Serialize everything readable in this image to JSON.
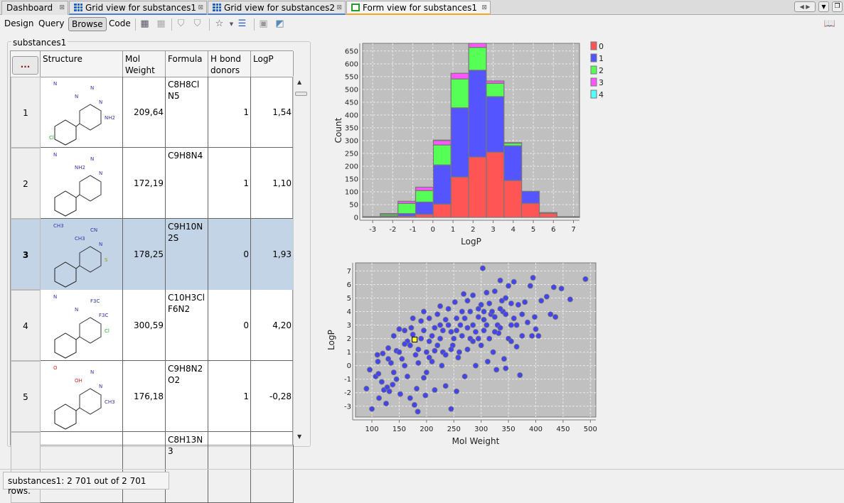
{
  "tabs": [
    {
      "label": "Dashboard",
      "icon": "none",
      "active": false
    },
    {
      "label": "Grid view for substances1",
      "icon": "grid-icon",
      "active": false
    },
    {
      "label": "Grid view for substances2",
      "icon": "grid-icon",
      "active": false
    },
    {
      "label": "Form view for substances1",
      "icon": "form-icon",
      "active": true
    }
  ],
  "toolbar": {
    "design": "Design",
    "query": "Query",
    "browse": "Browse",
    "code": "Code"
  },
  "panel": {
    "title": "substances1",
    "corner_button": "...",
    "columns": [
      "Structure",
      "Mol Weight",
      "Formula",
      "H bond donors",
      "LogP"
    ],
    "rows": [
      {
        "n": "1",
        "mw": "209,64",
        "formula": "C8H8ClN5",
        "hbd": "1",
        "logp": "1,54",
        "atoms": [
          "N",
          "N",
          "N",
          "N",
          "NH2",
          "Cl"
        ]
      },
      {
        "n": "2",
        "mw": "172,19",
        "formula": "C9H8N4",
        "hbd": "1",
        "logp": "1,10",
        "atoms": [
          "N",
          "N",
          "N",
          "NH2"
        ]
      },
      {
        "n": "3",
        "mw": "178,25",
        "formula": "C9H10N2S",
        "hbd": "0",
        "logp": "1,93",
        "atoms": [
          "CN",
          "N",
          "CH3",
          "CH3",
          "S"
        ],
        "selected": true
      },
      {
        "n": "4",
        "mw": "300,59",
        "formula": "C10H3ClF6N2",
        "hbd": "0",
        "logp": "4,20",
        "atoms": [
          "F3C",
          "F3C",
          "N",
          "N",
          "Cl"
        ]
      },
      {
        "n": "5",
        "mw": "176,18",
        "formula": "C9H8N2O2",
        "hbd": "1",
        "logp": "-0,28",
        "atoms": [
          "N",
          "N",
          "O",
          "OH",
          "CH3"
        ]
      },
      {
        "n": "",
        "mw": "",
        "formula": "C8H13N3",
        "hbd": "",
        "logp": "",
        "atoms": []
      }
    ]
  },
  "status": "substances1: 2 701 out of 2 701 rows.",
  "chart_data": [
    {
      "type": "bar",
      "stacked": true,
      "xlabel": "LogP",
      "ylabel": "Count",
      "xlim": [
        -3.5,
        7.3
      ],
      "ylim": [
        0,
        680
      ],
      "xticks": [
        -3,
        -2,
        -1,
        0,
        1,
        2,
        3,
        4,
        5,
        6,
        7
      ],
      "yticks": [
        0,
        50,
        100,
        150,
        200,
        250,
        300,
        350,
        400,
        450,
        500,
        550,
        600,
        650
      ],
      "grid": true,
      "legend": "right",
      "series": [
        {
          "name": "0",
          "color": "#ff5555"
        },
        {
          "name": "1",
          "color": "#5555ff"
        },
        {
          "name": "2",
          "color": "#55ff55"
        },
        {
          "name": "3",
          "color": "#ff55ff"
        },
        {
          "name": "4",
          "color": "#55ffff"
        }
      ],
      "bins": [
        {
          "from": -3.5,
          "to": -2.62,
          "values": [
            2,
            1,
            0,
            0,
            0
          ]
        },
        {
          "from": -2.62,
          "to": -1.74,
          "values": [
            3,
            3,
            6,
            3,
            0
          ]
        },
        {
          "from": -1.74,
          "to": -0.86,
          "values": [
            5,
            10,
            40,
            8,
            0
          ]
        },
        {
          "from": -0.86,
          "to": 0.02,
          "values": [
            12,
            48,
            45,
            13,
            0
          ]
        },
        {
          "from": 0.02,
          "to": 0.9,
          "values": [
            52,
            153,
            78,
            17,
            2
          ]
        },
        {
          "from": 0.9,
          "to": 1.78,
          "values": [
            158,
            270,
            113,
            22,
            0
          ]
        },
        {
          "from": 1.78,
          "to": 2.66,
          "values": [
            236,
            339,
            89,
            16,
            0
          ]
        },
        {
          "from": 2.66,
          "to": 3.54,
          "values": [
            255,
            217,
            52,
            9,
            0
          ]
        },
        {
          "from": 3.54,
          "to": 4.42,
          "values": [
            144,
            136,
            10,
            2,
            0
          ]
        },
        {
          "from": 4.42,
          "to": 5.3,
          "values": [
            55,
            47,
            0,
            0,
            0
          ]
        },
        {
          "from": 5.3,
          "to": 6.18,
          "values": [
            16,
            3,
            0,
            0,
            0
          ]
        },
        {
          "from": 6.18,
          "to": 7.06,
          "values": [
            2,
            1,
            0,
            0,
            0
          ]
        },
        {
          "from": 7.06,
          "to": 7.3,
          "values": [
            2,
            1,
            0,
            0,
            0
          ]
        }
      ]
    },
    {
      "type": "scatter",
      "xlabel": "Mol Weight",
      "ylabel": "LogP",
      "xlim": [
        70,
        510
      ],
      "ylim": [
        -3.8,
        7.6
      ],
      "xticks": [
        100,
        150,
        200,
        250,
        300,
        350,
        400,
        450,
        500
      ],
      "yticks": [
        -3,
        -2,
        -1,
        0,
        1,
        2,
        3,
        4,
        5,
        6,
        7
      ],
      "grid": true,
      "point_color": "#4444ee",
      "highlight_color": "#ffff33",
      "highlight": [
        178.25,
        1.93
      ],
      "points": [
        [
          90,
          -1.7
        ],
        [
          96,
          -0.3
        ],
        [
          100,
          -3.2
        ],
        [
          107,
          -0.8
        ],
        [
          110,
          0.8
        ],
        [
          111,
          0.3
        ],
        [
          112,
          -0.6
        ],
        [
          113,
          -2.4
        ],
        [
          118,
          -1.2
        ],
        [
          120,
          0.9
        ],
        [
          122,
          -1.8
        ],
        [
          126,
          -2.8
        ],
        [
          128,
          -1.6
        ],
        [
          130,
          1.3
        ],
        [
          132,
          -1.9
        ],
        [
          135,
          0.2
        ],
        [
          138,
          -1.4
        ],
        [
          140,
          2.2
        ],
        [
          145,
          1.1
        ],
        [
          150,
          2.7
        ],
        [
          152,
          -2.1
        ],
        [
          155,
          0.5
        ],
        [
          160,
          2.6
        ],
        [
          165,
          1.8
        ],
        [
          170,
          -2.4
        ],
        [
          172,
          2.8
        ],
        [
          175,
          3.5
        ],
        [
          178,
          -2.9
        ],
        [
          182,
          -1.7
        ],
        [
          184,
          -3.4
        ],
        [
          190,
          3.3
        ],
        [
          195,
          4.0
        ],
        [
          198,
          -2.2
        ],
        [
          200,
          1.0
        ],
        [
          205,
          3.5
        ],
        [
          210,
          2.2
        ],
        [
          215,
          -1.8
        ],
        [
          220,
          3.8
        ],
        [
          225,
          4.4
        ],
        [
          228,
          0.0
        ],
        [
          230,
          2.6
        ],
        [
          235,
          -1.5
        ],
        [
          240,
          4.2
        ],
        [
          245,
          -3.2
        ],
        [
          248,
          1.5
        ],
        [
          252,
          4.7
        ],
        [
          255,
          -1.9
        ],
        [
          258,
          0.6
        ],
        [
          262,
          3.0
        ],
        [
          268,
          5.3
        ],
        [
          270,
          -0.8
        ],
        [
          275,
          4.8
        ],
        [
          280,
          2.0
        ],
        [
          285,
          5.2
        ],
        [
          290,
          0.0
        ],
        [
          295,
          3.6
        ],
        [
          300,
          4.5
        ],
        [
          303,
          7.2
        ],
        [
          305,
          2.6
        ],
        [
          310,
          5.4
        ],
        [
          312,
          0.3
        ],
        [
          318,
          3.8
        ],
        [
          322,
          1.0
        ],
        [
          325,
          5.5
        ],
        [
          328,
          -0.3
        ],
        [
          332,
          2.4
        ],
        [
          335,
          6.3
        ],
        [
          338,
          4.8
        ],
        [
          342,
          0.5
        ],
        [
          345,
          -0.2
        ],
        [
          350,
          5.9
        ],
        [
          355,
          3.0
        ],
        [
          360,
          6.2
        ],
        [
          365,
          1.4
        ],
        [
          368,
          4.5
        ],
        [
          371,
          -0.7
        ],
        [
          375,
          2.2
        ],
        [
          380,
          4.7
        ],
        [
          385,
          3.2
        ],
        [
          390,
          5.9
        ],
        [
          393,
          2.2
        ],
        [
          395,
          6.5
        ],
        [
          398,
          3.6
        ],
        [
          400,
          2.7
        ],
        [
          405,
          2.2
        ],
        [
          410,
          4.8
        ],
        [
          420,
          5.1
        ],
        [
          427,
          3.8
        ],
        [
          433,
          5.8
        ],
        [
          436,
          3.6
        ],
        [
          447,
          5.7
        ],
        [
          463,
          4.9
        ],
        [
          491,
          6.4
        ],
        [
          150,
          1.0
        ],
        [
          160,
          0.0
        ],
        [
          170,
          1.5
        ],
        [
          180,
          0.8
        ],
        [
          190,
          2.0
        ],
        [
          200,
          -0.5
        ],
        [
          210,
          0.3
        ],
        [
          220,
          1.5
        ],
        [
          230,
          1.0
        ],
        [
          240,
          3.0
        ],
        [
          250,
          2.0
        ],
        [
          260,
          1.0
        ],
        [
          270,
          3.5
        ],
        [
          280,
          4.0
        ],
        [
          290,
          2.5
        ],
        [
          300,
          1.5
        ],
        [
          310,
          3.0
        ],
        [
          320,
          4.0
        ],
        [
          330,
          3.0
        ],
        [
          340,
          4.0
        ],
        [
          350,
          2.0
        ],
        [
          360,
          3.5
        ],
        [
          140,
          -0.5
        ],
        [
          130,
          0.5
        ],
        [
          145,
          -1.0
        ],
        [
          165,
          -0.8
        ],
        [
          185,
          0.2
        ],
        [
          195,
          -0.9
        ],
        [
          205,
          1.8
        ],
        [
          215,
          2.8
        ],
        [
          225,
          2.0
        ],
        [
          235,
          0.8
        ],
        [
          245,
          2.5
        ],
        [
          255,
          3.5
        ],
        [
          265,
          2.2
        ],
        [
          275,
          1.2
        ],
        [
          285,
          3.0
        ],
        [
          295,
          4.2
        ],
        [
          305,
          3.4
        ],
        [
          315,
          2.0
        ],
        [
          325,
          3.6
        ],
        [
          335,
          2.8
        ],
        [
          345,
          3.8
        ],
        [
          355,
          4.6
        ],
        [
          365,
          3.0
        ],
        [
          375,
          3.8
        ],
        [
          160,
          1.6
        ],
        [
          175,
          2.3
        ],
        [
          185,
          1.2
        ],
        [
          195,
          2.6
        ],
        [
          205,
          0.6
        ],
        [
          215,
          1.1
        ],
        [
          225,
          3.0
        ],
        [
          235,
          3.4
        ],
        [
          245,
          1.2
        ],
        [
          255,
          2.6
        ],
        [
          265,
          4.0
        ],
        [
          275,
          2.8
        ],
        [
          285,
          1.8
        ],
        [
          295,
          2.0
        ],
        [
          305,
          4.0
        ],
        [
          315,
          4.6
        ],
        [
          325,
          2.5
        ],
        [
          335,
          4.2
        ],
        [
          345,
          5.0
        ],
        [
          355,
          1.8
        ]
      ]
    }
  ]
}
